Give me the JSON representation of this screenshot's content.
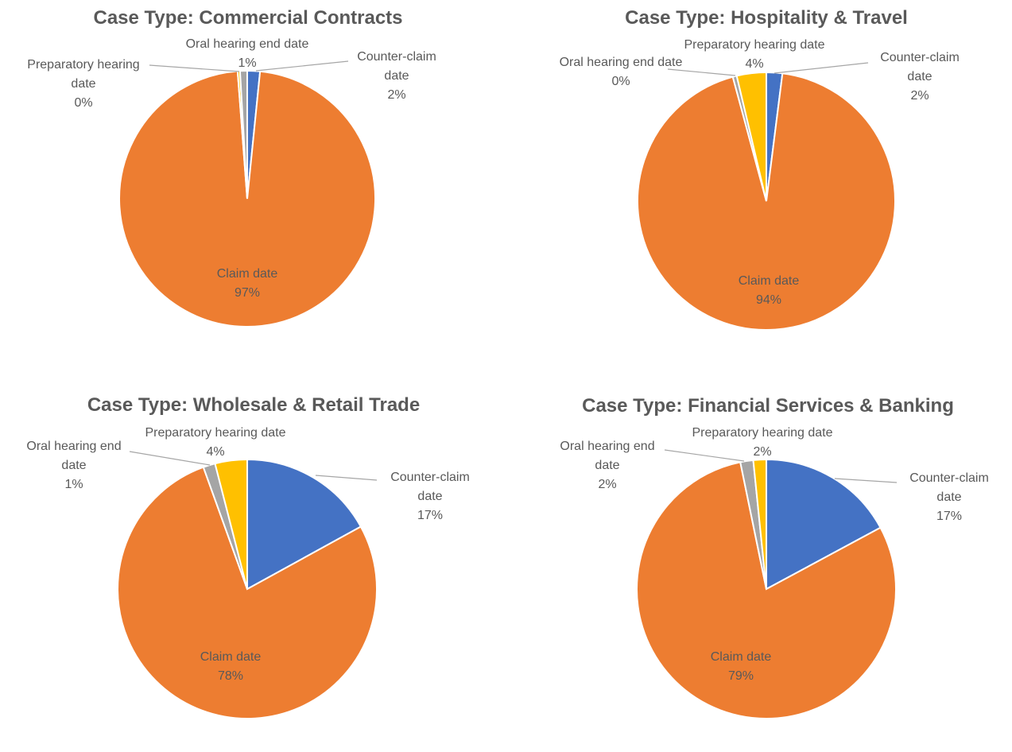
{
  "chart_data": [
    {
      "type": "pie",
      "title": "Case Type: Commercial Contracts",
      "categories": [
        "Counter-claim date",
        "Claim date",
        "Preparatory hearing date",
        "Oral hearing end date"
      ],
      "values": [
        1.6,
        97.2,
        0.3,
        0.9
      ],
      "labels": [
        {
          "name": [
            "Counter-claim",
            "date"
          ],
          "pct": "2%"
        },
        {
          "name": [
            "Claim date"
          ],
          "pct": "97%"
        },
        {
          "name": [
            "Preparatory hearing",
            "date"
          ],
          "pct": "0%"
        },
        {
          "name": [
            "Oral hearing end date"
          ],
          "pct": "1%"
        }
      ]
    },
    {
      "type": "pie",
      "title": "Case Type: Hospitality & Travel",
      "categories": [
        "Counter-claim date",
        "Claim date",
        "Oral hearing end date",
        "Preparatory hearing date"
      ],
      "values": [
        2.0,
        93.8,
        0.5,
        3.7
      ],
      "labels": [
        {
          "name": [
            "Counter-claim",
            "date"
          ],
          "pct": "2%"
        },
        {
          "name": [
            "Claim date"
          ],
          "pct": "94%"
        },
        {
          "name": [
            "Oral hearing end date"
          ],
          "pct": "0%"
        },
        {
          "name": [
            "Preparatory hearing date"
          ],
          "pct": "4%"
        }
      ]
    },
    {
      "type": "pie",
      "title": "Case Type: Wholesale & Retail Trade",
      "categories": [
        "Counter-claim date",
        "Claim date",
        "Oral hearing end date",
        "Preparatory hearing date"
      ],
      "values": [
        17.0,
        77.5,
        1.5,
        4.0
      ],
      "labels": [
        {
          "name": [
            "Counter-claim",
            "date"
          ],
          "pct": "17%"
        },
        {
          "name": [
            "Claim date"
          ],
          "pct": "78%"
        },
        {
          "name": [
            "Oral hearing end",
            "date"
          ],
          "pct": "1%"
        },
        {
          "name": [
            "Preparatory hearing date"
          ],
          "pct": "4%"
        }
      ]
    },
    {
      "type": "pie",
      "title": "Case Type: Financial Services & Banking",
      "categories": [
        "Counter-claim date",
        "Claim date",
        "Oral hearing end date",
        "Preparatory hearing date"
      ],
      "values": [
        17.0,
        79.0,
        1.6,
        1.6
      ],
      "labels": [
        {
          "name": [
            "Counter-claim",
            "date"
          ],
          "pct": "17%"
        },
        {
          "name": [
            "Claim date"
          ],
          "pct": "79%"
        },
        {
          "name": [
            "Oral hearing end",
            "date"
          ],
          "pct": "2%"
        },
        {
          "name": [
            "Preparatory hearing date"
          ],
          "pct": "2%"
        }
      ]
    }
  ],
  "colors": {
    "Counter-claim date": "#4472c4",
    "Claim date": "#ed7d31",
    "Oral hearing end date": "#a5a5a5",
    "Preparatory hearing date": "#ffc000"
  }
}
